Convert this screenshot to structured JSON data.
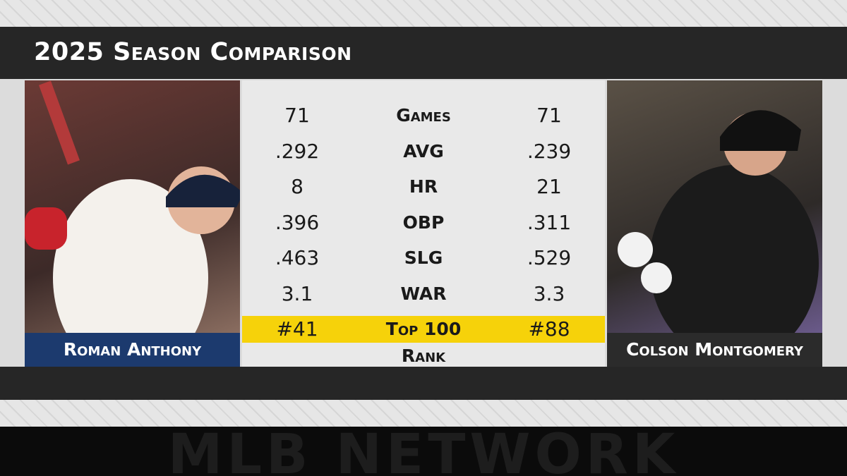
{
  "header": {
    "title": "2025 Season Comparison"
  },
  "players": [
    {
      "name": "Roman Anthony"
    },
    {
      "name": "Colson Montgomery"
    }
  ],
  "table": {
    "rows": [
      [
        "71",
        "Games",
        "71"
      ],
      [
        ".292",
        "AVG",
        ".239"
      ],
      [
        "8",
        "HR",
        "21"
      ],
      [
        ".396",
        "OBP",
        ".311"
      ],
      [
        ".463",
        "SLG",
        ".529"
      ],
      [
        "3.1",
        "WAR",
        "3.3"
      ],
      [
        "#41",
        "Top 100 Rank",
        "#88"
      ]
    ]
  },
  "footer": {
    "network": "MLB NETWORK"
  }
}
